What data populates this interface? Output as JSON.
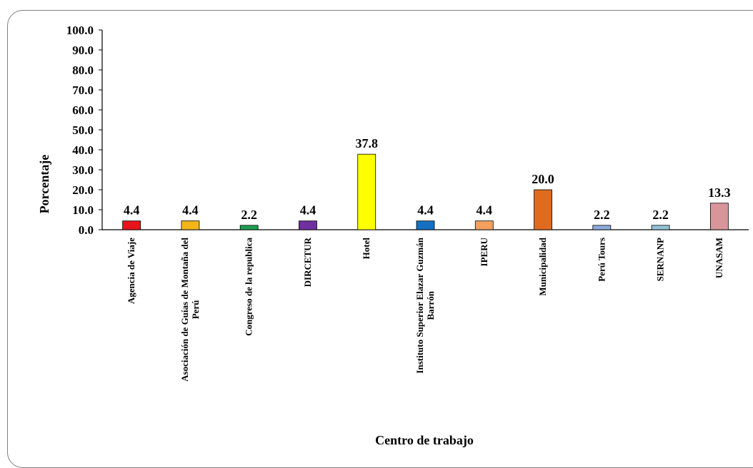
{
  "chart_data": {
    "type": "bar",
    "title": "",
    "xlabel": "Centro de trabajo",
    "ylabel": "Porcentaje",
    "ylim": [
      0,
      100
    ],
    "yticks": [
      "0.0",
      "10.0",
      "20.0",
      "30.0",
      "40.0",
      "50.0",
      "60.0",
      "70.0",
      "80.0",
      "90.0",
      "100.0"
    ],
    "grid": false,
    "legend": "none",
    "categories": [
      [
        "Agencia de Viaje"
      ],
      [
        "Asociación de Guías de Montaña del",
        "Perú"
      ],
      [
        "Congreso de la republica"
      ],
      [
        "DIRCETUR"
      ],
      [
        "Hotel"
      ],
      [
        "Instituto Superior Elazar Guzmán",
        "Barrón"
      ],
      [
        "IPERU"
      ],
      [
        "Municipalidad"
      ],
      [
        "Perú Tours"
      ],
      [
        "SERNANP"
      ],
      [
        "UNASAM"
      ]
    ],
    "values": [
      4.4,
      4.4,
      2.2,
      4.4,
      37.8,
      4.4,
      4.4,
      20.0,
      2.2,
      2.2,
      13.3
    ],
    "value_labels": [
      "4.4",
      "4.4",
      "2.2",
      "4.4",
      "37.8",
      "4.4",
      "4.4",
      "20.0",
      "2.2",
      "2.2",
      "13.3"
    ],
    "colors": [
      "#e8141b",
      "#f3b519",
      "#1d9d50",
      "#7030a0",
      "#ffff00",
      "#1570c1",
      "#f4a060",
      "#e06b1f",
      "#8eaadb",
      "#93c2d5",
      "#d9969a"
    ]
  }
}
